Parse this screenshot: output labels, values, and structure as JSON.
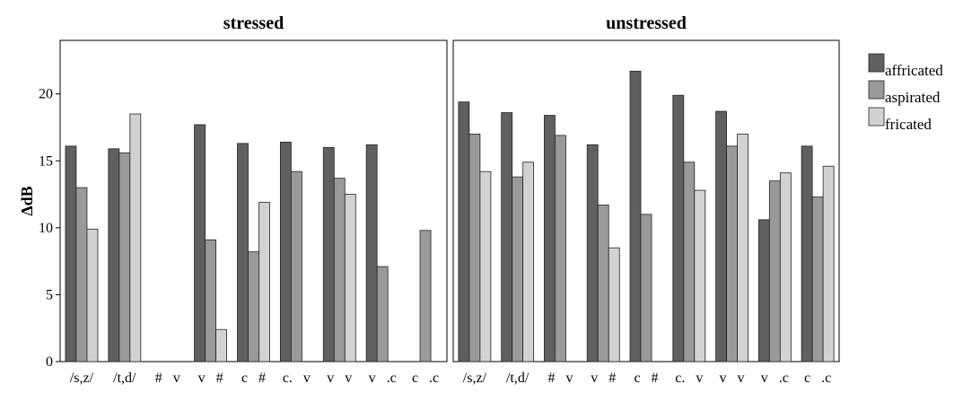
{
  "chart_data": {
    "type": "bar",
    "ylabel": "ΔdB",
    "ylim": [
      0,
      24
    ],
    "yticks": [
      "0",
      "5",
      "10",
      "15",
      "20"
    ],
    "grid": false,
    "legend_position": "right",
    "series": [
      {
        "name": "affricated",
        "color": "#606060"
      },
      {
        "name": "aspirated",
        "color": "#9a9a9a"
      },
      {
        "name": "fricated",
        "color": "#d2d2d2"
      }
    ],
    "panels": [
      {
        "title": "stressed",
        "categories": [
          "/s,z/",
          "/t,d/",
          "#   v",
          "v   #",
          "c   #",
          "c.   v",
          "v   v",
          "v   .c",
          "c   .c"
        ],
        "values": [
          [
            16.1,
            13.0,
            9.9
          ],
          [
            15.9,
            15.6,
            18.5
          ],
          [
            null,
            null,
            null
          ],
          [
            17.7,
            9.1,
            2.4
          ],
          [
            16.3,
            8.2,
            11.9
          ],
          [
            16.4,
            14.2,
            null
          ],
          [
            16.0,
            13.7,
            12.5
          ],
          [
            16.2,
            7.1,
            null
          ],
          [
            null,
            9.8,
            null
          ]
        ]
      },
      {
        "title": "unstressed",
        "categories": [
          "/s,z/",
          "/t,d/",
          "#   v",
          "v   #",
          "c   #",
          "c.   v",
          "v   v",
          "v   .c",
          "c   .c"
        ],
        "values": [
          [
            19.4,
            17.0,
            14.2
          ],
          [
            18.6,
            13.8,
            14.9
          ],
          [
            18.4,
            16.9,
            null
          ],
          [
            16.2,
            11.7,
            8.5
          ],
          [
            21.7,
            11.0,
            null
          ],
          [
            19.9,
            14.9,
            12.8
          ],
          [
            18.7,
            16.1,
            17.0
          ],
          [
            10.6,
            13.5,
            14.1
          ],
          [
            16.1,
            12.3,
            14.6
          ]
        ]
      }
    ]
  }
}
